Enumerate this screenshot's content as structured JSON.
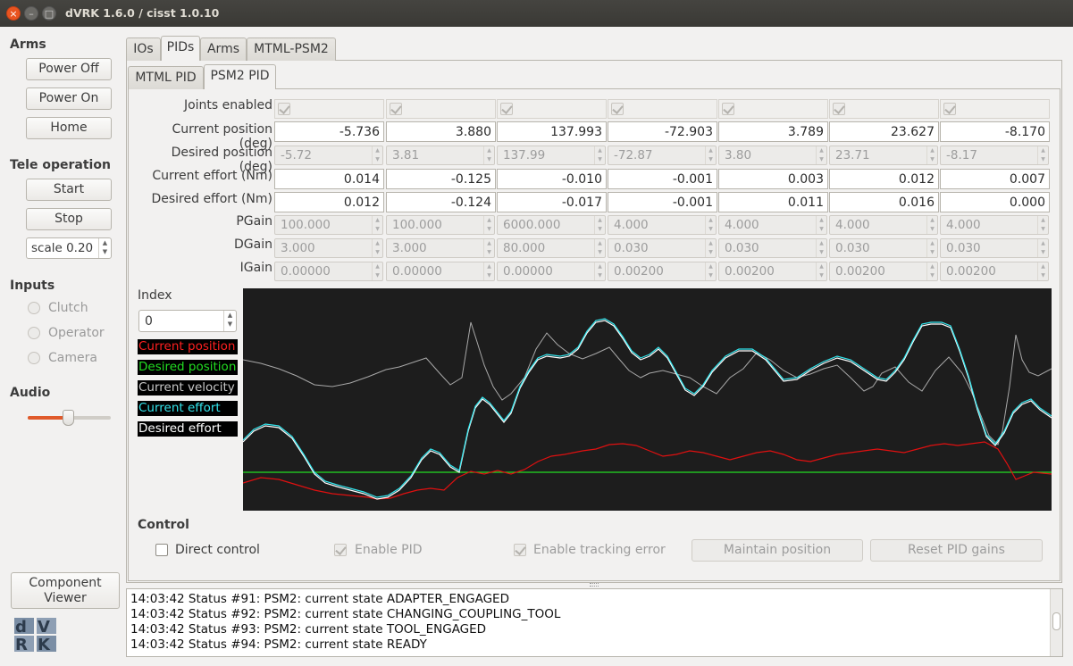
{
  "window": {
    "title": "dVRK 1.6.0 / cisst 1.0.10"
  },
  "left": {
    "arms_title": "Arms",
    "power_off": "Power Off",
    "power_on": "Power On",
    "home": "Home",
    "tele_title": "Tele operation",
    "start": "Start",
    "stop": "Stop",
    "scale": "scale 0.20",
    "inputs_title": "Inputs",
    "inputs": [
      "Clutch",
      "Operator",
      "Camera"
    ],
    "audio_title": "Audio",
    "audio_level": 0.48,
    "component_viewer": [
      "Component",
      "Viewer"
    ],
    "logo": "dVRK"
  },
  "tabs": [
    "IOs",
    "PIDs",
    "Arms",
    "MTML-PSM2"
  ],
  "active_tab": "PIDs",
  "subtabs": [
    "MTML PID",
    "PSM2 PID"
  ],
  "active_subtab": "PSM2 PID",
  "pid": {
    "labels": {
      "joints_enabled": "Joints enabled",
      "current_position": "Current position (deg)",
      "desired_position": "Desired position (deg)",
      "current_effort": "Current effort (Nm)",
      "desired_effort": "Desired effort (Nm)",
      "pgain": "PGain",
      "dgain": "DGain",
      "igain": "IGain"
    },
    "current_position": [
      "-5.736",
      "3.880",
      "137.993",
      "-72.903",
      "3.789",
      "23.627",
      "-8.170"
    ],
    "desired_position": [
      "-5.72",
      "3.81",
      "137.99",
      "-72.87",
      "3.80",
      "23.71",
      "-8.17"
    ],
    "current_effort": [
      "0.014",
      "-0.125",
      "-0.010",
      "-0.001",
      "0.003",
      "0.012",
      "0.007"
    ],
    "desired_effort": [
      "0.012",
      "-0.124",
      "-0.017",
      "-0.001",
      "0.011",
      "0.016",
      "0.000"
    ],
    "pgain": [
      "100.000",
      "100.000",
      "6000.000",
      "4.000",
      "4.000",
      "4.000",
      "4.000"
    ],
    "dgain": [
      "3.000",
      "3.000",
      "80.000",
      "0.030",
      "0.030",
      "0.030",
      "0.030"
    ],
    "igain": [
      "0.00000",
      "0.00000",
      "0.00000",
      "0.00200",
      "0.00200",
      "0.00200",
      "0.00200"
    ]
  },
  "plot": {
    "index_label": "Index",
    "index_value": "0",
    "legend": [
      {
        "label": "Current position",
        "color": "#ff2020"
      },
      {
        "label": "Desired position",
        "color": "#22dd22"
      },
      {
        "label": "Current velocity",
        "color": "#c8c8c8"
      },
      {
        "label": "Current effort",
        "color": "#33e6ee"
      },
      {
        "label": "Desired effort",
        "color": "#ffffff"
      }
    ]
  },
  "control": {
    "title": "Control",
    "direct_control": "Direct control",
    "enable_pid": "Enable PID",
    "enable_tracking_error": "Enable tracking error",
    "maintain_position": "Maintain position",
    "reset_pid_gains": "Reset PID gains"
  },
  "log": [
    "14:03:42 Status #91: PSM2: current state ADAPTER_ENGAGED",
    "14:03:42 Status #92: PSM2: current state CHANGING_COUPLING_TOOL",
    "14:03:42 Status #93: PSM2: current state TOOL_ENGAGED",
    "14:03:42 Status #94: PSM2: current state READY"
  ]
}
